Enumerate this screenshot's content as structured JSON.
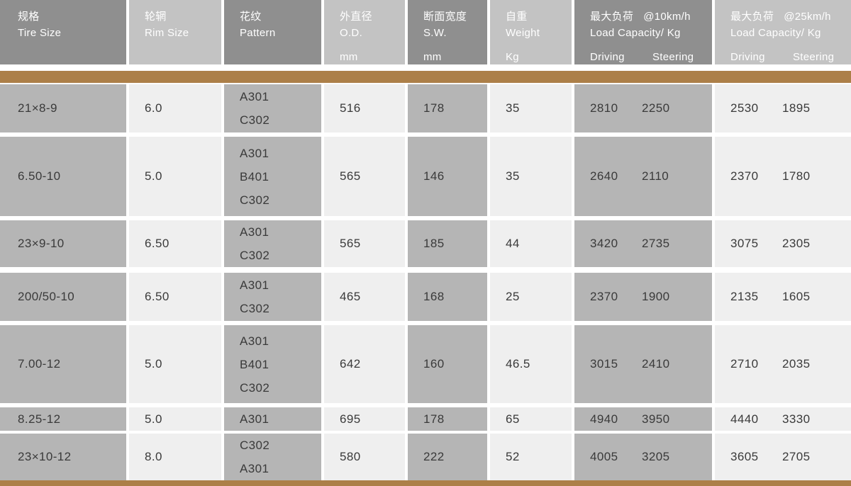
{
  "colors": {
    "accent_brown": "#ac7f48",
    "header_dark": "#8f8f8f",
    "header_light": "#c3c3c3",
    "body_dark": "#b5b5b5",
    "body_light": "#efefef",
    "header_text": "#ffffff",
    "body_text": "#3a3a3a"
  },
  "columns": [
    {
      "zh": "规格",
      "en": "Tire Size"
    },
    {
      "zh": "轮辋",
      "en": "Rim Size"
    },
    {
      "zh": "花纹",
      "en": "Pattern"
    },
    {
      "zh": "外直径",
      "en": "O.D.",
      "unit": "mm"
    },
    {
      "zh": "断面宽度",
      "en": "S.W.",
      "unit": "mm"
    },
    {
      "zh": "自重",
      "en": "Weight",
      "unit": "Kg"
    },
    {
      "zh": "最大负荷",
      "speed": "@10km/h",
      "en": "Load Capacity/ Kg",
      "sub1": "Driving",
      "sub2": "Steering"
    },
    {
      "zh": "最大负荷",
      "speed": "@25km/h",
      "en": "Load Capacity/ Kg",
      "sub1": "Driving",
      "sub2": "Steering"
    }
  ],
  "rows": [
    {
      "tire_size": "21×8-9",
      "rim_size": "6.0",
      "patterns": [
        "A301",
        "C302"
      ],
      "od": "516",
      "sw": "178",
      "weight": "35",
      "cap10": [
        "2810",
        "2250"
      ],
      "cap25": [
        "2530",
        "1895"
      ]
    },
    {
      "tire_size": "6.50-10",
      "rim_size": "5.0",
      "patterns": [
        "A301",
        "B401",
        "C302"
      ],
      "od": "565",
      "sw": "146",
      "weight": "35",
      "cap10": [
        "2640",
        "2110"
      ],
      "cap25": [
        "2370",
        "1780"
      ]
    },
    {
      "tire_size": "23×9-10",
      "rim_size": "6.50",
      "patterns": [
        "A301",
        "C302"
      ],
      "od": "565",
      "sw": "185",
      "weight": "44",
      "cap10": [
        "3420",
        "2735"
      ],
      "cap25": [
        "3075",
        "2305"
      ]
    },
    {
      "tire_size": "200/50-10",
      "rim_size": "6.50",
      "patterns": [
        "A301",
        "C302"
      ],
      "od": "465",
      "sw": "168",
      "weight": "25",
      "cap10": [
        "2370",
        "1900"
      ],
      "cap25": [
        "2135",
        "1605"
      ]
    },
    {
      "tire_size": "7.00-12",
      "rim_size": "5.0",
      "patterns": [
        "A301",
        "B401",
        "C302"
      ],
      "od": "642",
      "sw": "160",
      "weight": "46.5",
      "cap10": [
        "3015",
        "2410"
      ],
      "cap25": [
        "2710",
        "2035"
      ]
    },
    {
      "tire_size": "8.25-12",
      "rim_size": "5.0",
      "patterns": [
        "A301"
      ],
      "od": "695",
      "sw": "178",
      "weight": "65",
      "cap10": [
        "4940",
        "3950"
      ],
      "cap25": [
        "4440",
        "3330"
      ]
    },
    {
      "tire_size": "23×10-12",
      "rim_size": "8.0",
      "patterns": [
        "C302",
        "A301"
      ],
      "od": "580",
      "sw": "222",
      "weight": "52",
      "cap10": [
        "4005",
        "3205"
      ],
      "cap25": [
        "3605",
        "2705"
      ]
    }
  ]
}
